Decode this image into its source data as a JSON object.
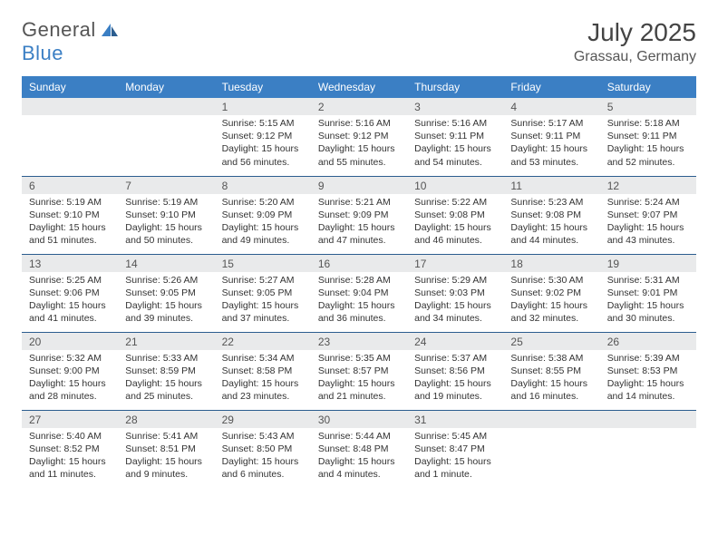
{
  "logo": {
    "text1": "General",
    "text2": "Blue"
  },
  "title": "July 2025",
  "location": "Grassau, Germany",
  "colors": {
    "header_bg": "#3b7fc4",
    "header_text": "#ffffff",
    "daynum_bg": "#e9eaeb",
    "border": "#2b5d8f",
    "logo_accent": "#3b7fc4"
  },
  "day_headers": [
    "Sunday",
    "Monday",
    "Tuesday",
    "Wednesday",
    "Thursday",
    "Friday",
    "Saturday"
  ],
  "weeks": [
    [
      {
        "num": "",
        "lines": []
      },
      {
        "num": "",
        "lines": []
      },
      {
        "num": "1",
        "lines": [
          "Sunrise: 5:15 AM",
          "Sunset: 9:12 PM",
          "Daylight: 15 hours and 56 minutes."
        ]
      },
      {
        "num": "2",
        "lines": [
          "Sunrise: 5:16 AM",
          "Sunset: 9:12 PM",
          "Daylight: 15 hours and 55 minutes."
        ]
      },
      {
        "num": "3",
        "lines": [
          "Sunrise: 5:16 AM",
          "Sunset: 9:11 PM",
          "Daylight: 15 hours and 54 minutes."
        ]
      },
      {
        "num": "4",
        "lines": [
          "Sunrise: 5:17 AM",
          "Sunset: 9:11 PM",
          "Daylight: 15 hours and 53 minutes."
        ]
      },
      {
        "num": "5",
        "lines": [
          "Sunrise: 5:18 AM",
          "Sunset: 9:11 PM",
          "Daylight: 15 hours and 52 minutes."
        ]
      }
    ],
    [
      {
        "num": "6",
        "lines": [
          "Sunrise: 5:19 AM",
          "Sunset: 9:10 PM",
          "Daylight: 15 hours and 51 minutes."
        ]
      },
      {
        "num": "7",
        "lines": [
          "Sunrise: 5:19 AM",
          "Sunset: 9:10 PM",
          "Daylight: 15 hours and 50 minutes."
        ]
      },
      {
        "num": "8",
        "lines": [
          "Sunrise: 5:20 AM",
          "Sunset: 9:09 PM",
          "Daylight: 15 hours and 49 minutes."
        ]
      },
      {
        "num": "9",
        "lines": [
          "Sunrise: 5:21 AM",
          "Sunset: 9:09 PM",
          "Daylight: 15 hours and 47 minutes."
        ]
      },
      {
        "num": "10",
        "lines": [
          "Sunrise: 5:22 AM",
          "Sunset: 9:08 PM",
          "Daylight: 15 hours and 46 minutes."
        ]
      },
      {
        "num": "11",
        "lines": [
          "Sunrise: 5:23 AM",
          "Sunset: 9:08 PM",
          "Daylight: 15 hours and 44 minutes."
        ]
      },
      {
        "num": "12",
        "lines": [
          "Sunrise: 5:24 AM",
          "Sunset: 9:07 PM",
          "Daylight: 15 hours and 43 minutes."
        ]
      }
    ],
    [
      {
        "num": "13",
        "lines": [
          "Sunrise: 5:25 AM",
          "Sunset: 9:06 PM",
          "Daylight: 15 hours and 41 minutes."
        ]
      },
      {
        "num": "14",
        "lines": [
          "Sunrise: 5:26 AM",
          "Sunset: 9:05 PM",
          "Daylight: 15 hours and 39 minutes."
        ]
      },
      {
        "num": "15",
        "lines": [
          "Sunrise: 5:27 AM",
          "Sunset: 9:05 PM",
          "Daylight: 15 hours and 37 minutes."
        ]
      },
      {
        "num": "16",
        "lines": [
          "Sunrise: 5:28 AM",
          "Sunset: 9:04 PM",
          "Daylight: 15 hours and 36 minutes."
        ]
      },
      {
        "num": "17",
        "lines": [
          "Sunrise: 5:29 AM",
          "Sunset: 9:03 PM",
          "Daylight: 15 hours and 34 minutes."
        ]
      },
      {
        "num": "18",
        "lines": [
          "Sunrise: 5:30 AM",
          "Sunset: 9:02 PM",
          "Daylight: 15 hours and 32 minutes."
        ]
      },
      {
        "num": "19",
        "lines": [
          "Sunrise: 5:31 AM",
          "Sunset: 9:01 PM",
          "Daylight: 15 hours and 30 minutes."
        ]
      }
    ],
    [
      {
        "num": "20",
        "lines": [
          "Sunrise: 5:32 AM",
          "Sunset: 9:00 PM",
          "Daylight: 15 hours and 28 minutes."
        ]
      },
      {
        "num": "21",
        "lines": [
          "Sunrise: 5:33 AM",
          "Sunset: 8:59 PM",
          "Daylight: 15 hours and 25 minutes."
        ]
      },
      {
        "num": "22",
        "lines": [
          "Sunrise: 5:34 AM",
          "Sunset: 8:58 PM",
          "Daylight: 15 hours and 23 minutes."
        ]
      },
      {
        "num": "23",
        "lines": [
          "Sunrise: 5:35 AM",
          "Sunset: 8:57 PM",
          "Daylight: 15 hours and 21 minutes."
        ]
      },
      {
        "num": "24",
        "lines": [
          "Sunrise: 5:37 AM",
          "Sunset: 8:56 PM",
          "Daylight: 15 hours and 19 minutes."
        ]
      },
      {
        "num": "25",
        "lines": [
          "Sunrise: 5:38 AM",
          "Sunset: 8:55 PM",
          "Daylight: 15 hours and 16 minutes."
        ]
      },
      {
        "num": "26",
        "lines": [
          "Sunrise: 5:39 AM",
          "Sunset: 8:53 PM",
          "Daylight: 15 hours and 14 minutes."
        ]
      }
    ],
    [
      {
        "num": "27",
        "lines": [
          "Sunrise: 5:40 AM",
          "Sunset: 8:52 PM",
          "Daylight: 15 hours and 11 minutes."
        ]
      },
      {
        "num": "28",
        "lines": [
          "Sunrise: 5:41 AM",
          "Sunset: 8:51 PM",
          "Daylight: 15 hours and 9 minutes."
        ]
      },
      {
        "num": "29",
        "lines": [
          "Sunrise: 5:43 AM",
          "Sunset: 8:50 PM",
          "Daylight: 15 hours and 6 minutes."
        ]
      },
      {
        "num": "30",
        "lines": [
          "Sunrise: 5:44 AM",
          "Sunset: 8:48 PM",
          "Daylight: 15 hours and 4 minutes."
        ]
      },
      {
        "num": "31",
        "lines": [
          "Sunrise: 5:45 AM",
          "Sunset: 8:47 PM",
          "Daylight: 15 hours and 1 minute."
        ]
      },
      {
        "num": "",
        "lines": []
      },
      {
        "num": "",
        "lines": []
      }
    ]
  ]
}
